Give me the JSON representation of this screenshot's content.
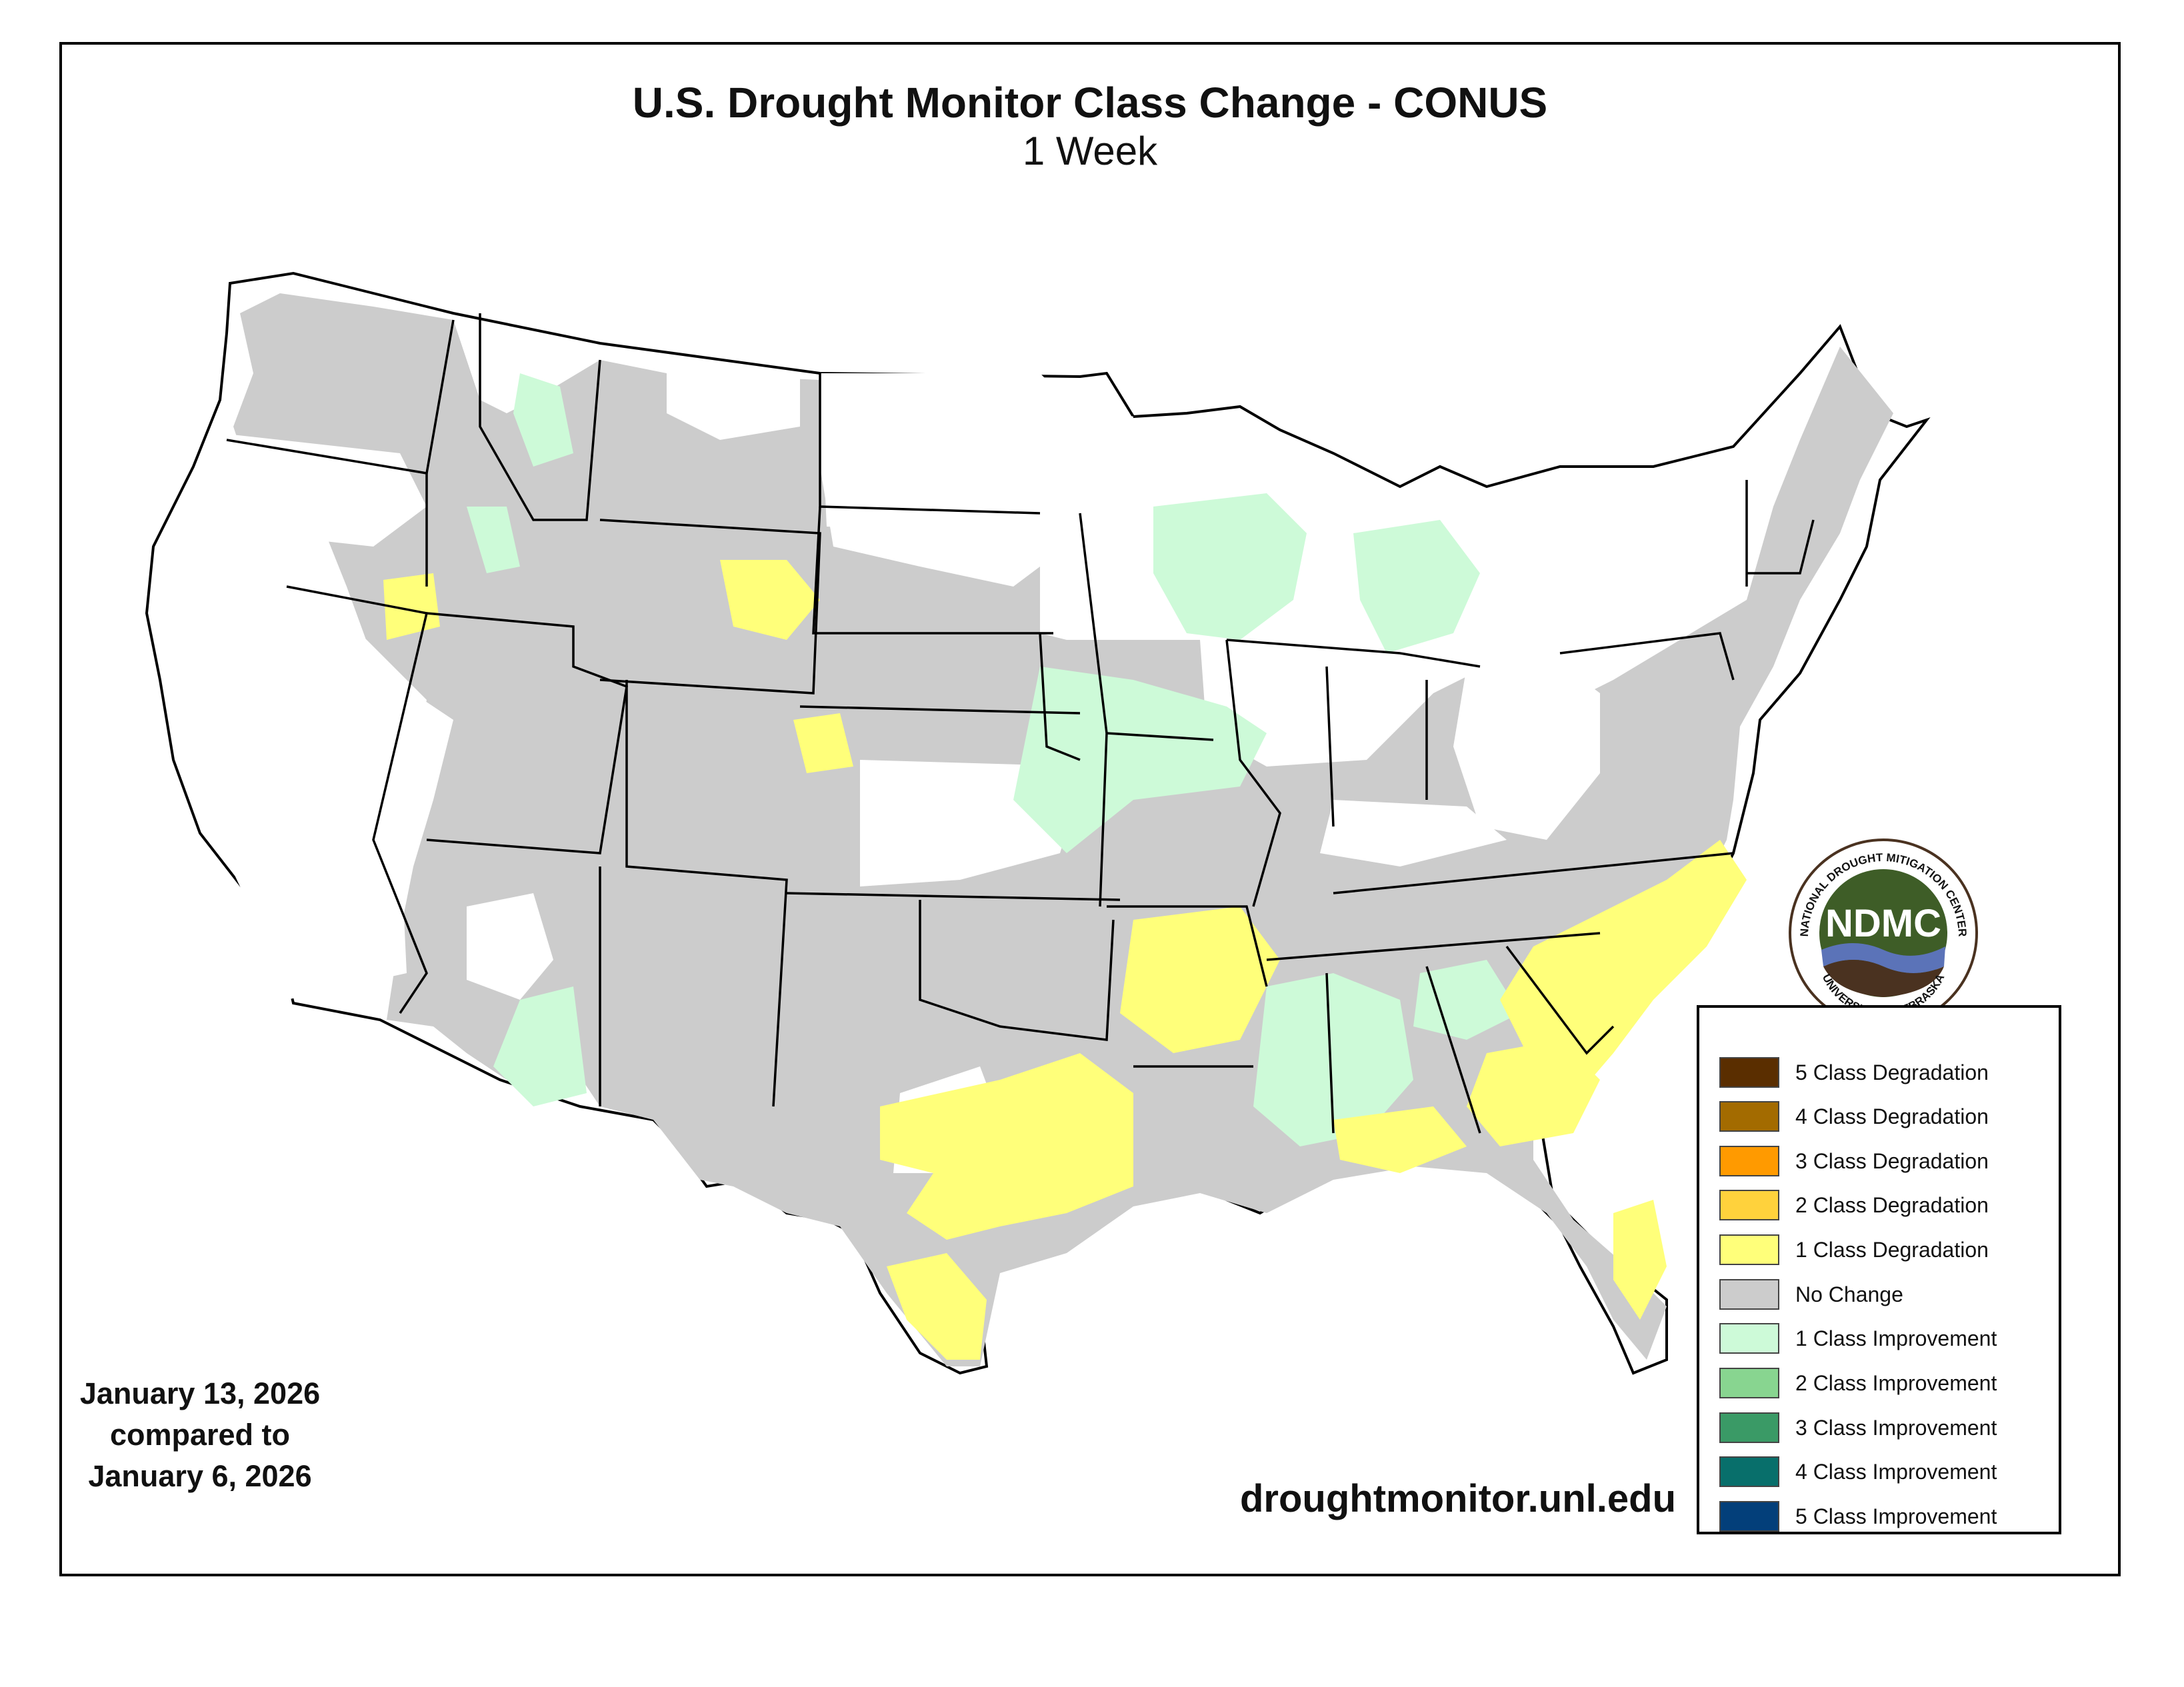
{
  "header": {
    "title": "U.S. Drought Monitor Class Change - CONUS",
    "subtitle": "1 Week"
  },
  "dates": {
    "line1": "January 13, 2026",
    "line2": "compared to",
    "line3": "January 6, 2026"
  },
  "website": "droughtmonitor.unl.edu",
  "logo": {
    "text": "NDMC",
    "ring_top": "NATIONAL DROUGHT MITIGATION CENTER",
    "ring_bottom": "UNIVERSITY OF NEBRASKA"
  },
  "legend": [
    {
      "label": "5 Class Degradation",
      "color": "#5a2e00"
    },
    {
      "label": "4 Class Degradation",
      "color": "#a36b00"
    },
    {
      "label": "3 Class Degradation",
      "color": "#ff9a00"
    },
    {
      "label": "2 Class Degradation",
      "color": "#ffd23c"
    },
    {
      "label": "1 Class Degradation",
      "color": "#ffff7a"
    },
    {
      "label": "No Change",
      "color": "#cccccc"
    },
    {
      "label": "1 Class Improvement",
      "color": "#cdfad8"
    },
    {
      "label": "2 Class Improvement",
      "color": "#88d590"
    },
    {
      "label": "3 Class Improvement",
      "color": "#3a9a66"
    },
    {
      "label": "4 Class Improvement",
      "color": "#086f6b"
    },
    {
      "label": "5 Class Improvement",
      "color": "#033f7a"
    }
  ],
  "colors": {
    "no_change": "#cccccc",
    "improve_1": "#cdfad8",
    "improve_2": "#88d590",
    "degrade_1": "#ffff7a",
    "degrade_2": "#ffd23c",
    "logo_green": "#3e5d27",
    "logo_brown": "#4a3220",
    "logo_blue": "#5b73b8"
  }
}
